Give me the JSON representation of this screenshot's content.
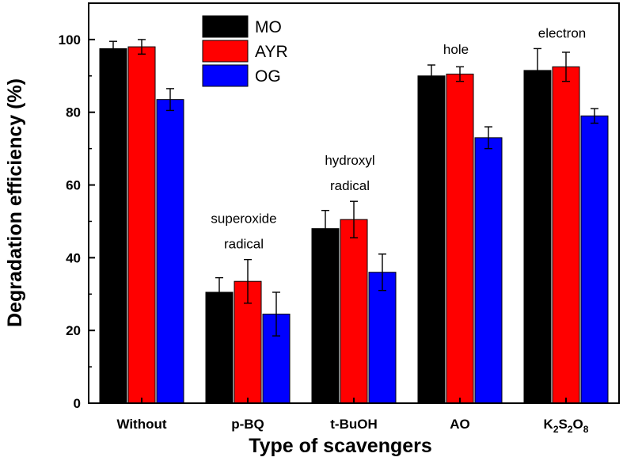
{
  "chart_data": {
    "type": "bar",
    "xlabel": "Type of scavengers",
    "ylabel": "Degradation efficiency (%)",
    "ylim": [
      0,
      110
    ],
    "yticks": [
      0,
      20,
      40,
      60,
      80,
      100
    ],
    "categories": [
      "Without",
      "p-BQ",
      "t-BuOH",
      "AO",
      "K2S2O8"
    ],
    "series": [
      {
        "name": "MO",
        "color": "#000000",
        "values": [
          97.5,
          30.5,
          48,
          90,
          91.5
        ],
        "errors": [
          2,
          4,
          5,
          3,
          6
        ]
      },
      {
        "name": "AYR",
        "color": "#ff0000",
        "values": [
          98,
          33.5,
          50.5,
          90.5,
          92.5
        ],
        "errors": [
          2,
          6,
          5,
          2,
          4
        ]
      },
      {
        "name": "OG",
        "color": "#0000ff",
        "values": [
          83.5,
          24.5,
          36,
          73,
          79
        ],
        "errors": [
          3,
          6,
          5,
          3,
          2
        ]
      }
    ],
    "annotations": [
      {
        "category": "p-BQ",
        "lines": [
          "superoxide",
          "radical"
        ]
      },
      {
        "category": "t-BuOH",
        "lines": [
          "hydroxyl",
          "radical"
        ]
      },
      {
        "category": "AO",
        "lines": [
          "hole"
        ]
      },
      {
        "category": "K2S2O8",
        "lines": [
          "electron"
        ]
      }
    ],
    "legend_position": "top-left"
  }
}
